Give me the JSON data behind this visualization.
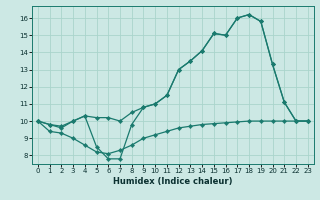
{
  "xlabel": "Humidex (Indice chaleur)",
  "bg_color": "#cce8e4",
  "line_color": "#1a7a6e",
  "grid_color": "#aad4cc",
  "xlim": [
    -0.5,
    23.5
  ],
  "ylim": [
    7.5,
    16.7
  ],
  "xticks": [
    0,
    1,
    2,
    3,
    4,
    5,
    6,
    7,
    8,
    9,
    10,
    11,
    12,
    13,
    14,
    15,
    16,
    17,
    18,
    19,
    20,
    21,
    22,
    23
  ],
  "yticks": [
    8,
    9,
    10,
    11,
    12,
    13,
    14,
    15,
    16
  ],
  "line1_x": [
    0,
    1,
    2,
    3,
    4,
    5,
    6,
    7,
    8,
    9,
    10,
    11,
    12,
    13,
    14,
    15,
    16,
    17,
    18,
    19,
    20,
    21,
    22,
    23
  ],
  "line1_y": [
    10.0,
    9.8,
    9.6,
    10.0,
    10.3,
    8.5,
    7.8,
    7.8,
    9.8,
    10.8,
    11.0,
    11.5,
    13.0,
    13.5,
    14.1,
    15.1,
    15.0,
    16.0,
    16.2,
    15.8,
    13.3,
    11.1,
    10.0,
    10.0
  ],
  "line2_x": [
    0,
    1,
    2,
    3,
    4,
    5,
    6,
    7,
    8,
    9,
    10,
    11,
    12,
    13,
    14,
    15,
    16,
    17,
    18,
    19,
    20,
    21,
    22,
    23
  ],
  "line2_y": [
    10.0,
    9.8,
    9.7,
    10.0,
    10.3,
    10.2,
    10.2,
    10.0,
    10.5,
    10.8,
    11.0,
    11.5,
    13.0,
    13.5,
    14.1,
    15.1,
    15.0,
    16.0,
    16.2,
    15.8,
    13.3,
    11.1,
    10.0,
    10.0
  ],
  "line3_x": [
    0,
    1,
    2,
    3,
    4,
    5,
    6,
    7,
    8,
    9,
    10,
    11,
    12,
    13,
    14,
    15,
    16,
    17,
    18,
    19,
    20,
    21,
    22,
    23
  ],
  "line3_y": [
    10.0,
    9.4,
    9.3,
    9.0,
    8.6,
    8.2,
    8.1,
    8.3,
    8.6,
    9.0,
    9.2,
    9.4,
    9.6,
    9.7,
    9.8,
    9.85,
    9.9,
    9.95,
    10.0,
    10.0,
    10.0,
    10.0,
    10.0,
    10.0
  ]
}
